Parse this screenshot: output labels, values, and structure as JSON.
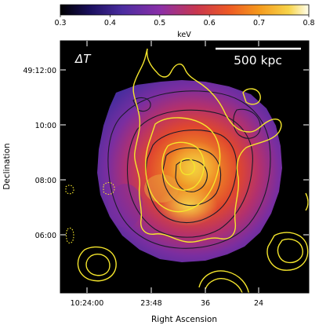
{
  "colorbar": {
    "unit": "keV",
    "ticks": [
      "0.3",
      "0.4",
      "0.5",
      "0.6",
      "0.7",
      "0.8"
    ],
    "colors": [
      "#000000",
      "#1a0f5e",
      "#4b2da0",
      "#8a2fa8",
      "#c9374e",
      "#ee5a24",
      "#f59a1d",
      "#f7d44a",
      "#ffffee"
    ]
  },
  "map": {
    "quantity_label": "ΔT",
    "scalebar_label": "500 kpc",
    "contour_colors": {
      "dark": "#1b1b2a",
      "light": "#f5e62c"
    }
  },
  "axes": {
    "xlabel": "Right Ascension",
    "ylabel": "Declination",
    "xticks": [
      "10:24:00",
      "23:48",
      "36",
      "24"
    ],
    "yticks": [
      "49:12:00",
      "10:00",
      "08:00",
      "06:00"
    ]
  }
}
